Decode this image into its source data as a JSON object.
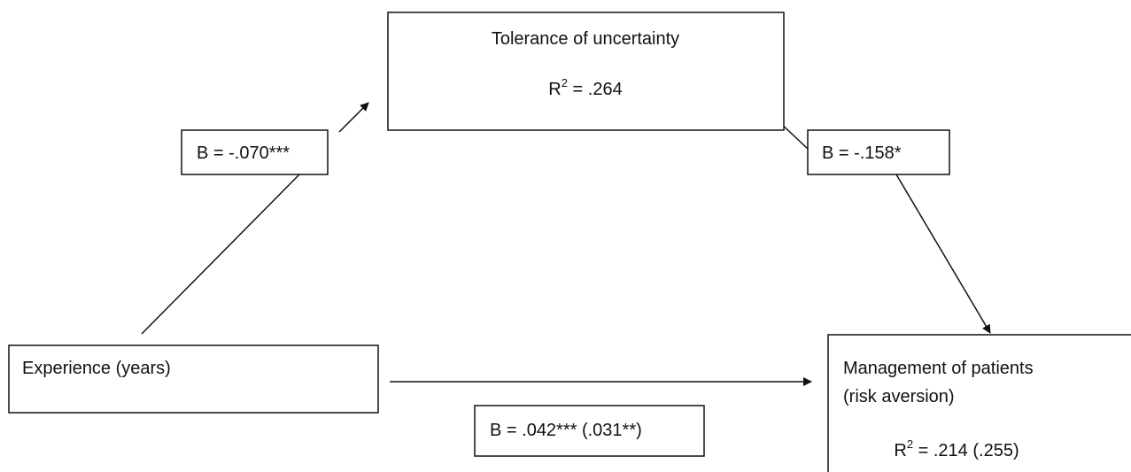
{
  "nodes": [
    {
      "label": "Tolerance of uncertainty",
      "stat": {
        "base": "R",
        "sup": "2",
        "rest": " = .264"
      }
    },
    {
      "label": "Experience (years)"
    },
    {
      "label_lines": [
        "Management of patients",
        "(risk aversion)"
      ],
      "stat": {
        "base": "R",
        "sup": "2",
        "rest": " = .214 (.255)"
      }
    }
  ],
  "edges": [
    {
      "label": "B = -.070***"
    },
    {
      "label": "B = -.158*"
    },
    {
      "label": "B = .042*** (.031**)"
    }
  ]
}
